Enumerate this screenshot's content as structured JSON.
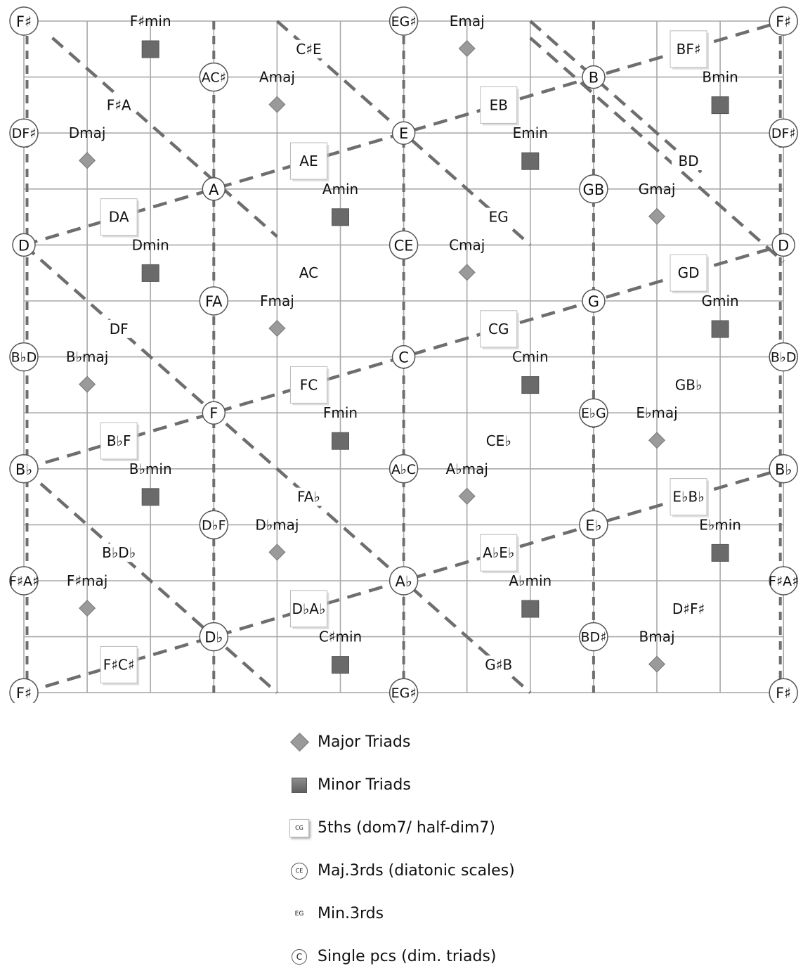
{
  "colors": {
    "grid": "#a9a9a9",
    "dashed": "#6e6e6e",
    "major_fill": "#9a9a9a",
    "minor_fill": "#6a6a6a",
    "node_stroke": "#555555"
  },
  "nodes": [
    {
      "label": "F♯",
      "col": 0,
      "row": 0
    },
    {
      "label": "EG♯",
      "col": 6,
      "row": 0
    },
    {
      "label": "F♯",
      "col": 12,
      "row": 0
    },
    {
      "label": "AC♯",
      "col": 3,
      "row": 1
    },
    {
      "label": "B",
      "col": 9,
      "row": 1
    },
    {
      "label": "DF♯",
      "col": 0,
      "row": 2
    },
    {
      "label": "E",
      "col": 6,
      "row": 2
    },
    {
      "label": "DF♯",
      "col": 12,
      "row": 2
    },
    {
      "label": "A",
      "col": 3,
      "row": 3
    },
    {
      "label": "GB",
      "col": 9,
      "row": 3
    },
    {
      "label": "D",
      "col": 0,
      "row": 4
    },
    {
      "label": "CE",
      "col": 6,
      "row": 4
    },
    {
      "label": "D",
      "col": 12,
      "row": 4
    },
    {
      "label": "FA",
      "col": 3,
      "row": 5
    },
    {
      "label": "G",
      "col": 9,
      "row": 5
    },
    {
      "label": "B♭D",
      "col": 0,
      "row": 6
    },
    {
      "label": "C",
      "col": 6,
      "row": 6
    },
    {
      "label": "B♭D",
      "col": 12,
      "row": 6
    },
    {
      "label": "F",
      "col": 3,
      "row": 7
    },
    {
      "label": "E♭G",
      "col": 9,
      "row": 7
    },
    {
      "label": "B♭",
      "col": 0,
      "row": 8
    },
    {
      "label": "A♭C",
      "col": 6,
      "row": 8
    },
    {
      "label": "B♭",
      "col": 12,
      "row": 8
    },
    {
      "label": "D♭F",
      "col": 3,
      "row": 9
    },
    {
      "label": "E♭",
      "col": 9,
      "row": 9
    },
    {
      "label": "F♯A♯",
      "col": 0,
      "row": 10
    },
    {
      "label": "A♭",
      "col": 6,
      "row": 10
    },
    {
      "label": "F♯A♯",
      "col": 12,
      "row": 10
    },
    {
      "label": "D♭",
      "col": 3,
      "row": 11
    },
    {
      "label": "BD♯",
      "col": 9,
      "row": 11
    },
    {
      "label": "F♯",
      "col": 0,
      "row": 12
    },
    {
      "label": "EG♯",
      "col": 6,
      "row": 12
    },
    {
      "label": "F♯",
      "col": 12,
      "row": 12
    }
  ],
  "fifths": [
    {
      "label": "BF♯",
      "col": 10.5,
      "row": 0.5
    },
    {
      "label": "EB",
      "col": 7.5,
      "row": 1.5
    },
    {
      "label": "AE",
      "col": 4.5,
      "row": 2.5
    },
    {
      "label": "DA",
      "col": 1.5,
      "row": 3.5
    },
    {
      "label": "GD",
      "col": 10.5,
      "row": 4.5
    },
    {
      "label": "CG",
      "col": 7.5,
      "row": 5.5
    },
    {
      "label": "FC",
      "col": 4.5,
      "row": 6.5
    },
    {
      "label": "B♭F",
      "col": 1.5,
      "row": 7.5
    },
    {
      "label": "E♭B♭",
      "col": 10.5,
      "row": 8.5
    },
    {
      "label": "A♭E♭",
      "col": 7.5,
      "row": 9.5
    },
    {
      "label": "D♭A♭",
      "col": 4.5,
      "row": 10.5
    },
    {
      "label": "F♯C♯",
      "col": 1.5,
      "row": 11.5
    }
  ],
  "minor_thirds": [
    {
      "label": "C♯E",
      "col": 4.5,
      "row": 0.5
    },
    {
      "label": "F♯A",
      "col": 1.5,
      "row": 1.5
    },
    {
      "label": "BD",
      "col": 10.5,
      "row": 2.5
    },
    {
      "label": "EG",
      "col": 7.5,
      "row": 3.5
    },
    {
      "label": "AC",
      "col": 4.5,
      "row": 4.5
    },
    {
      "label": "DF",
      "col": 1.5,
      "row": 5.5
    },
    {
      "label": "GB♭",
      "col": 10.5,
      "row": 6.5
    },
    {
      "label": "CE♭",
      "col": 7.5,
      "row": 7.5
    },
    {
      "label": "FA♭",
      "col": 4.5,
      "row": 8.5
    },
    {
      "label": "B♭D♭",
      "col": 1.5,
      "row": 9.5
    },
    {
      "label": "D♯F♯",
      "col": 10.5,
      "row": 10.5
    },
    {
      "label": "G♯B",
      "col": 7.5,
      "row": 11.5
    }
  ],
  "major_triads": [
    {
      "label": "Emaj",
      "col": 7,
      "row": 0
    },
    {
      "label": "Amaj",
      "col": 4,
      "row": 1
    },
    {
      "label": "Dmaj",
      "col": 1,
      "row": 2
    },
    {
      "label": "Gmaj",
      "col": 10,
      "row": 3
    },
    {
      "label": "Cmaj",
      "col": 7,
      "row": 4
    },
    {
      "label": "Fmaj",
      "col": 4,
      "row": 5
    },
    {
      "label": "B♭maj",
      "col": 1,
      "row": 6
    },
    {
      "label": "E♭maj",
      "col": 10,
      "row": 7
    },
    {
      "label": "A♭maj",
      "col": 7,
      "row": 8
    },
    {
      "label": "D♭maj",
      "col": 4,
      "row": 9
    },
    {
      "label": "F♯maj",
      "col": 1,
      "row": 10
    },
    {
      "label": "Bmaj",
      "col": 10,
      "row": 11
    }
  ],
  "minor_triads": [
    {
      "label": "F♯min",
      "col": 2,
      "row": 0
    },
    {
      "label": "Bmin",
      "col": 11,
      "row": 1
    },
    {
      "label": "Emin",
      "col": 8,
      "row": 2
    },
    {
      "label": "Amin",
      "col": 5,
      "row": 3
    },
    {
      "label": "Dmin",
      "col": 2,
      "row": 4
    },
    {
      "label": "Gmin",
      "col": 11,
      "row": 5
    },
    {
      "label": "Cmin",
      "col": 8,
      "row": 6
    },
    {
      "label": "Fmin",
      "col": 5,
      "row": 7
    },
    {
      "label": "B♭min",
      "col": 2,
      "row": 8
    },
    {
      "label": "E♭min",
      "col": 11,
      "row": 9
    },
    {
      "label": "A♭min",
      "col": 8,
      "row": 10
    },
    {
      "label": "C♯min",
      "col": 5,
      "row": 11
    }
  ],
  "legend": {
    "major": "Major Triads",
    "minor": "Minor Triads",
    "fifths": "5ths (dom7/ half-dim7)",
    "fifths_sample": "CG",
    "maj3": "Maj.3rds (diatonic scales)",
    "maj3_sample": "CE",
    "min3": "Min.3rds",
    "min3_sample": "EG",
    "single": "Single pcs (dim. triads)",
    "single_sample": "C"
  }
}
